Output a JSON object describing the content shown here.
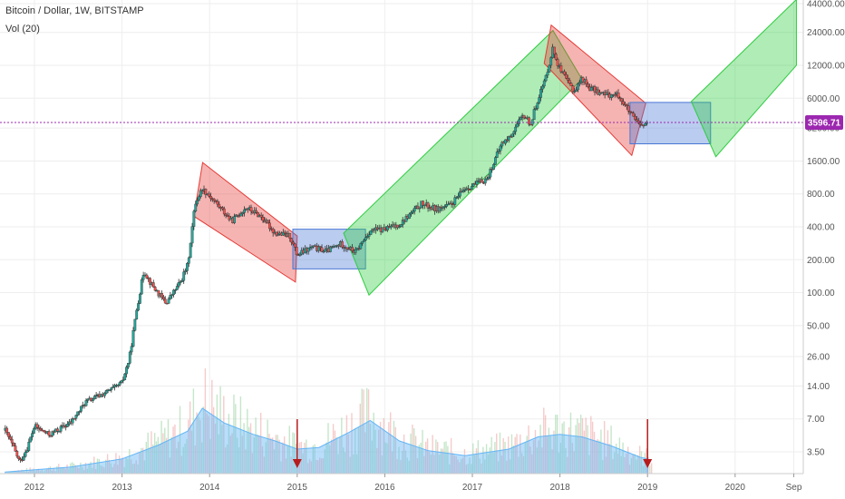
{
  "header": {
    "symbol_line": "Bitcoin / Dollar, 1W, BITSTAMP",
    "indicator_line": "Vol (20)"
  },
  "colors": {
    "up_candle": "#26a69a",
    "down_candle": "#ef5350",
    "bull_channel": "#2ecc40",
    "bear_channel": "#e53935",
    "range_box": "#4a78d6",
    "current_price_line": "#9c27b0",
    "volume_ma": "#64b5f6"
  },
  "chart_data": {
    "type": "line",
    "y_scale": "log",
    "y_ticks": [
      "44000.00",
      "24000.00",
      "12000.00",
      "6000.00",
      "3200.00",
      "1600.00",
      "800.00",
      "400.00",
      "200.00",
      "100.00",
      "50.00",
      "26.00",
      "14.00",
      "7.00",
      "3.50"
    ],
    "x_ticks": [
      "2012",
      "2013",
      "2014",
      "2015",
      "2016",
      "2017",
      "2018",
      "2019",
      "2020",
      "Sep"
    ],
    "current_price": "3596.71",
    "series": [
      {
        "x": [
          "2011-09",
          "2011-10",
          "2011-11",
          "2011-12",
          "2012-01",
          "2012-03",
          "2012-06",
          "2012-08",
          "2012-10",
          "2012-12",
          "2013-01",
          "2013-02",
          "2013-03",
          "2013-04",
          "2013-05",
          "2013-07",
          "2013-09",
          "2013-10",
          "2013-11",
          "2013-12",
          "2014-02",
          "2014-04",
          "2014-06",
          "2014-08",
          "2014-10",
          "2014-12",
          "2015-01",
          "2015-03",
          "2015-05",
          "2015-07",
          "2015-09",
          "2015-11",
          "2016-01",
          "2016-03",
          "2016-06",
          "2016-08",
          "2016-10",
          "2016-12",
          "2017-01",
          "2017-03",
          "2017-05",
          "2017-06",
          "2017-08",
          "2017-09",
          "2017-10",
          "2017-11",
          "2017-12",
          "2018-01",
          "2018-02",
          "2018-03",
          "2018-04",
          "2018-05",
          "2018-07",
          "2018-09",
          "2018-11",
          "2018-12",
          "2019-01"
        ],
        "y": [
          5.5,
          4.0,
          2.8,
          3.8,
          6.0,
          5.0,
          6.5,
          10,
          11.5,
          13.5,
          15,
          25,
          70,
          160,
          120,
          80,
          125,
          180,
          650,
          900,
          650,
          450,
          600,
          500,
          350,
          330,
          220,
          260,
          240,
          280,
          235,
          370,
          380,
          420,
          650,
          580,
          630,
          900,
          950,
          1100,
          2300,
          2600,
          4200,
          3500,
          6000,
          9000,
          17000,
          11000,
          8500,
          7000,
          9200,
          7500,
          6500,
          6400,
          4000,
          3300,
          3600
        ]
      }
    ],
    "volume_ma": {
      "x": [
        "2011-09",
        "2012-06",
        "2013-01",
        "2013-06",
        "2013-10",
        "2013-12",
        "2014-03",
        "2014-07",
        "2014-10",
        "2015-01",
        "2015-04",
        "2015-08",
        "2015-11",
        "2016-03",
        "2016-07",
        "2016-12",
        "2017-06",
        "2017-10",
        "2018-01",
        "2018-04",
        "2018-08",
        "2018-12",
        "2019-01"
      ],
      "y": [
        2,
        8,
        18,
        35,
        52,
        80,
        62,
        48,
        40,
        30,
        32,
        50,
        65,
        40,
        28,
        22,
        30,
        45,
        48,
        45,
        34,
        20,
        18
      ]
    },
    "drawings": [
      {
        "kind": "bear_channel",
        "from": "2013-11",
        "to": "2015-01"
      },
      {
        "kind": "range_box",
        "from": "2015-01",
        "to": "2015-10"
      },
      {
        "kind": "bull_channel",
        "from": "2015-08",
        "to": "2018-01"
      },
      {
        "kind": "bear_channel",
        "from": "2017-12",
        "to": "2018-12"
      },
      {
        "kind": "range_box",
        "from": "2018-11",
        "to": "2019-08"
      },
      {
        "kind": "bull_channel",
        "from": "2019-06",
        "to": "2020-10"
      }
    ]
  }
}
